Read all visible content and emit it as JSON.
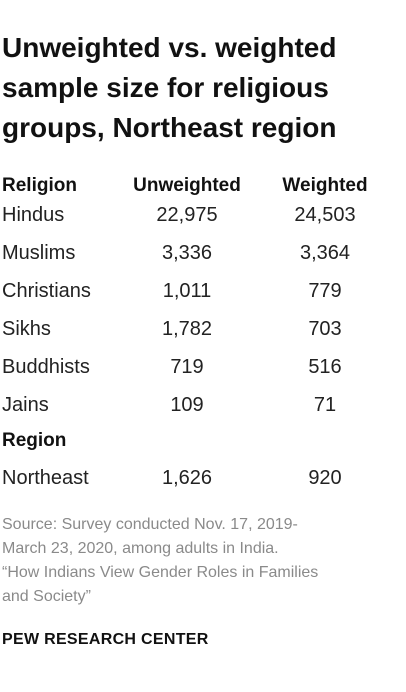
{
  "title": [
    "Unweighted vs. weighted",
    "sample size for religious",
    "groups, Northeast region"
  ],
  "table": {
    "header": [
      "Religion",
      "Unweighted",
      "Weighted"
    ],
    "rows": [
      [
        "Hindus",
        "22,975",
        "24,503"
      ],
      [
        "Muslims",
        "3,336",
        "3,364"
      ],
      [
        "Christians",
        "1,011",
        "779"
      ],
      [
        "Sikhs",
        "1,782",
        "703"
      ],
      [
        "Buddhists",
        "719",
        "516"
      ],
      [
        "Jains",
        "109",
        "71"
      ]
    ],
    "section": "Region",
    "section_rows": [
      [
        "Northeast",
        "1,626",
        "920"
      ]
    ]
  },
  "source": [
    "Source: Survey conducted Nov. 17, 2019-",
    "March 23, 2020, among adults in India.",
    "“How Indians View Gender Roles in Families",
    "and Society”"
  ],
  "footer": "PEW RESEARCH CENTER"
}
